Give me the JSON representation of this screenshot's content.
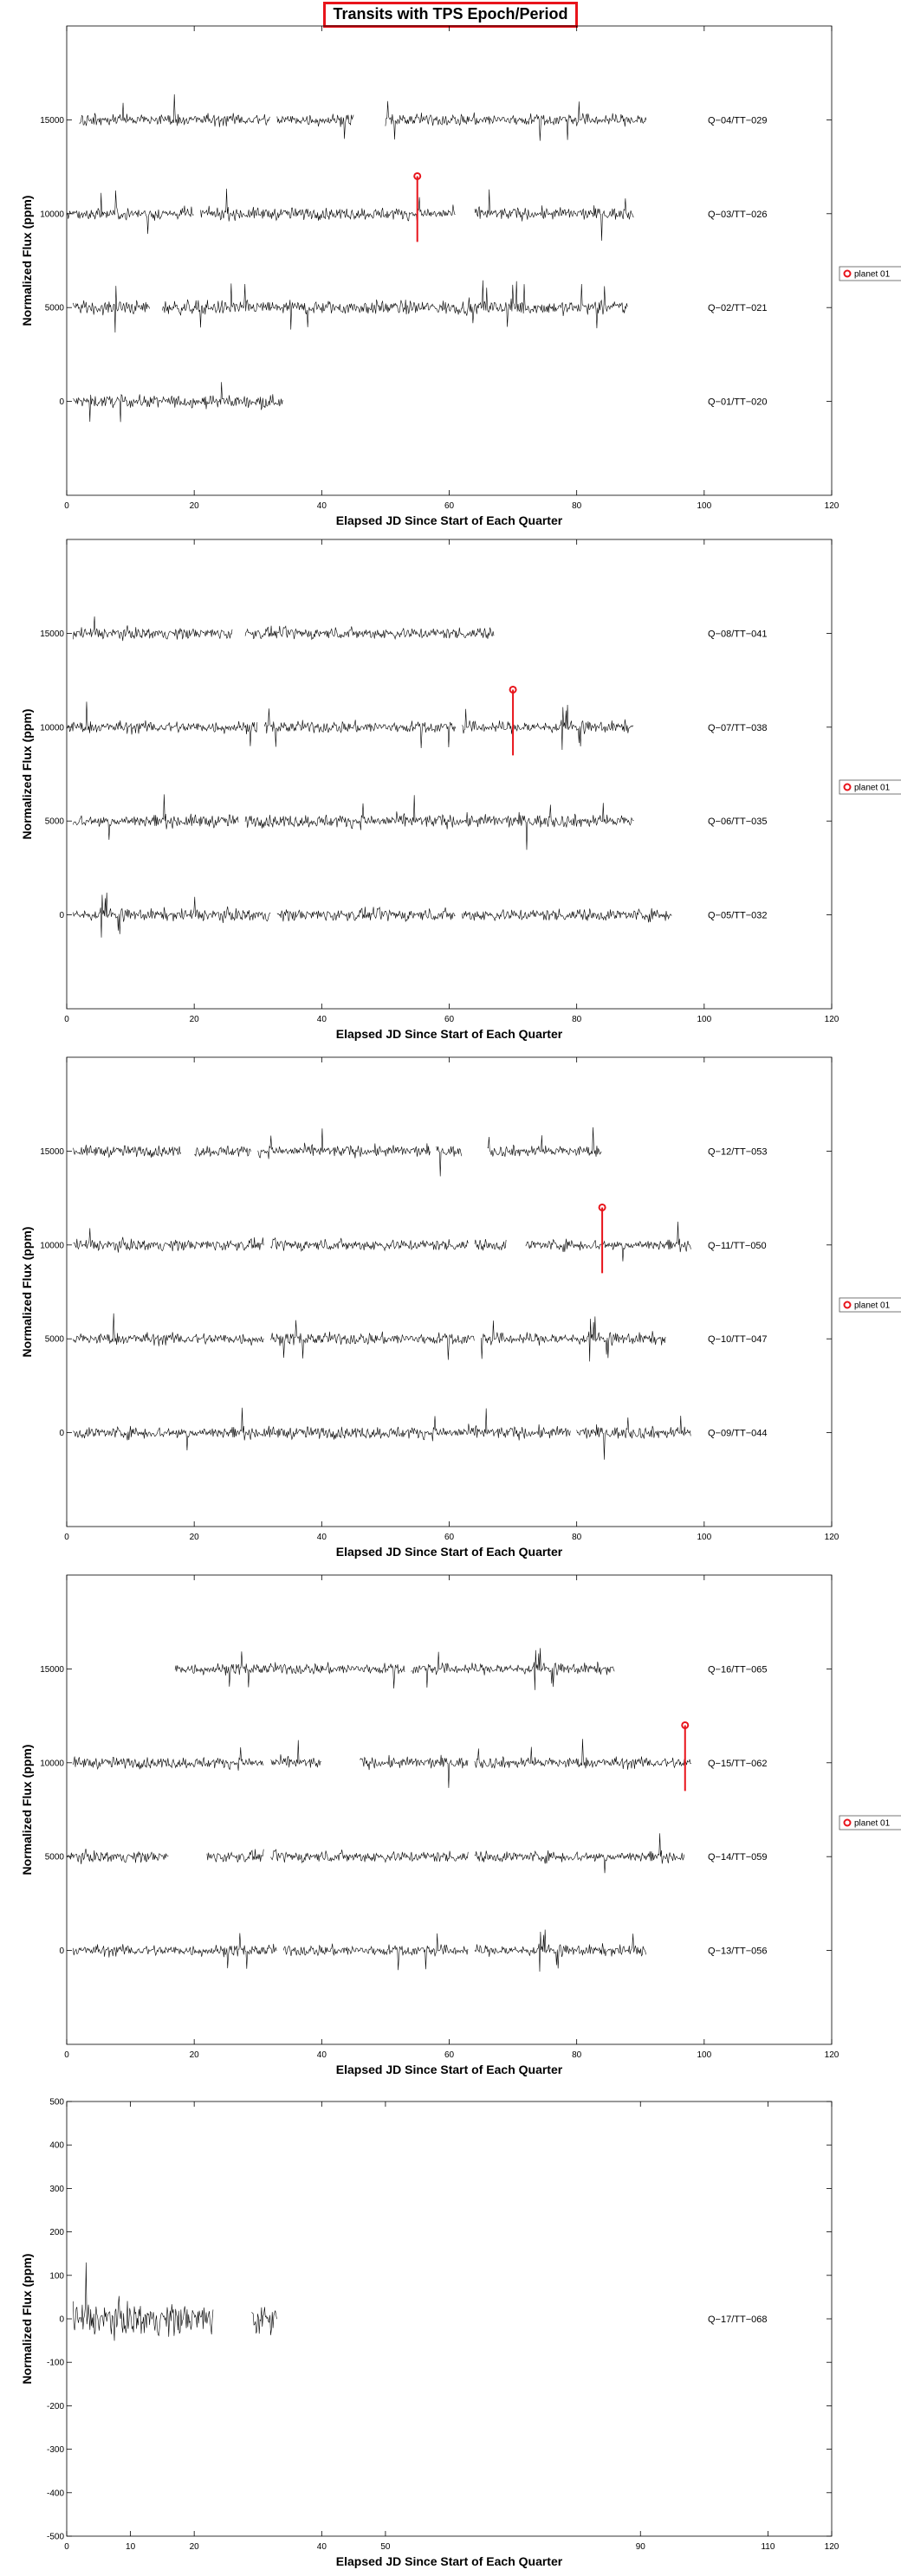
{
  "title": "Transits with TPS Epoch/Period",
  "colors": {
    "transit": "#e8141b",
    "trace": "#000000",
    "frame": "#000000"
  },
  "chart_data": [
    {
      "type": "line",
      "xlabel": "Elapsed JD Since Start of Each Quarter",
      "ylabel": "Normalized Flux (ppm)",
      "xlim": [
        0,
        120
      ],
      "ylim": [
        -5000,
        20000
      ],
      "xticks": [
        0,
        20,
        40,
        60,
        80,
        100,
        120
      ],
      "yticks": [
        0,
        5000,
        10000,
        15000
      ],
      "legend": "planet 01",
      "series": [
        {
          "name": "Q−01/TT−020",
          "offset": 0,
          "segments": [
            [
              1,
              34
            ]
          ],
          "noise": 300
        },
        {
          "name": "Q−02/TT−021",
          "offset": 5000,
          "segments": [
            [
              1,
              13
            ],
            [
              15,
              88
            ]
          ],
          "noise": 350
        },
        {
          "name": "Q−03/TT−026",
          "offset": 10000,
          "segments": [
            [
              0,
              20
            ],
            [
              21,
              61
            ],
            [
              64,
              89
            ]
          ],
          "noise": 300
        },
        {
          "name": "Q−04/TT−029",
          "offset": 15000,
          "segments": [
            [
              2,
              32
            ],
            [
              33,
              45
            ],
            [
              50,
              91
            ]
          ],
          "noise": 300
        }
      ],
      "transits": [
        {
          "quarter": "Q−03/TT−026",
          "x": 55,
          "y_marker": 12000,
          "y_low": 8500
        }
      ]
    },
    {
      "type": "line",
      "xlabel": "Elapsed JD Since Start of Each Quarter",
      "ylabel": "Normalized Flux (ppm)",
      "xlim": [
        0,
        120
      ],
      "ylim": [
        -5000,
        20000
      ],
      "xticks": [
        0,
        20,
        40,
        60,
        80,
        100,
        120
      ],
      "yticks": [
        0,
        5000,
        10000,
        15000
      ],
      "legend": "planet 01",
      "series": [
        {
          "name": "Q−05/TT−032",
          "offset": 0,
          "segments": [
            [
              1,
              32
            ],
            [
              33,
              61
            ],
            [
              62,
              95
            ]
          ],
          "noise": 300
        },
        {
          "name": "Q−06/TT−035",
          "offset": 5000,
          "segments": [
            [
              1,
              27
            ],
            [
              28,
              89
            ]
          ],
          "noise": 320
        },
        {
          "name": "Q−07/TT−038",
          "offset": 10000,
          "segments": [
            [
              0,
              30
            ],
            [
              31,
              61
            ],
            [
              62,
              89
            ]
          ],
          "noise": 300
        },
        {
          "name": "Q−08/TT−041",
          "offset": 15000,
          "segments": [
            [
              1,
              26
            ],
            [
              28,
              67
            ]
          ],
          "noise": 280
        }
      ],
      "transits": [
        {
          "quarter": "Q−07/TT−038",
          "x": 70,
          "y_marker": 12000,
          "y_low": 8500
        }
      ]
    },
    {
      "type": "line",
      "xlabel": "Elapsed JD Since Start of Each Quarter",
      "ylabel": "Normalized Flux (ppm)",
      "xlim": [
        0,
        120
      ],
      "ylim": [
        -5000,
        20000
      ],
      "xticks": [
        0,
        20,
        40,
        60,
        80,
        100,
        120
      ],
      "yticks": [
        0,
        5000,
        10000,
        15000
      ],
      "legend": "planet 01",
      "series": [
        {
          "name": "Q−09/TT−044",
          "offset": 0,
          "segments": [
            [
              1,
              79
            ],
            [
              80,
              98
            ]
          ],
          "noise": 300
        },
        {
          "name": "Q−10/TT−047",
          "offset": 5000,
          "segments": [
            [
              1,
              31
            ],
            [
              32,
              64
            ],
            [
              65,
              94
            ]
          ],
          "noise": 300
        },
        {
          "name": "Q−11/TT−050",
          "offset": 10000,
          "segments": [
            [
              1,
              31
            ],
            [
              32,
              63
            ],
            [
              64,
              69
            ],
            [
              72,
              98
            ]
          ],
          "noise": 280
        },
        {
          "name": "Q−12/TT−053",
          "offset": 15000,
          "segments": [
            [
              1,
              18
            ],
            [
              20,
              29
            ],
            [
              30,
              57
            ],
            [
              58,
              62
            ],
            [
              66,
              84
            ]
          ],
          "noise": 280
        }
      ],
      "transits": [
        {
          "quarter": "Q−11/TT−050",
          "x": 84,
          "y_marker": 12000,
          "y_low": 8500
        }
      ]
    },
    {
      "type": "line",
      "xlabel": "Elapsed JD Since Start of Each Quarter",
      "ylabel": "Normalized Flux (ppm)",
      "xlim": [
        0,
        120
      ],
      "ylim": [
        -5000,
        20000
      ],
      "xticks": [
        0,
        20,
        40,
        60,
        80,
        100,
        120
      ],
      "yticks": [
        0,
        5000,
        10000,
        15000
      ],
      "legend": "planet 01",
      "series": [
        {
          "name": "Q−13/TT−056",
          "offset": 0,
          "segments": [
            [
              1,
              33
            ],
            [
              34,
              63
            ],
            [
              64,
              91
            ]
          ],
          "noise": 280
        },
        {
          "name": "Q−14/TT−059",
          "offset": 5000,
          "segments": [
            [
              0,
              16
            ],
            [
              22,
              31
            ],
            [
              32,
              63
            ],
            [
              64,
              97
            ]
          ],
          "noise": 280
        },
        {
          "name": "Q−15/TT−062",
          "offset": 10000,
          "segments": [
            [
              1,
              31
            ],
            [
              32,
              40
            ],
            [
              46,
              63
            ],
            [
              64,
              98
            ]
          ],
          "noise": 280
        },
        {
          "name": "Q−16/TT−065",
          "offset": 15000,
          "segments": [
            [
              17,
              53
            ],
            [
              54,
              86
            ]
          ],
          "noise": 280
        }
      ],
      "transits": [
        {
          "quarter": "Q−15/TT−062",
          "x": 97,
          "y_marker": 12000,
          "y_low": 8500
        }
      ]
    },
    {
      "type": "line",
      "xlabel": "Elapsed JD Since Start of Each Quarter",
      "ylabel": "Normalized Flux (ppm)",
      "xlim": [
        0,
        120
      ],
      "ylim": [
        -500,
        500
      ],
      "xticks": [
        0,
        10,
        20,
        40,
        50,
        90,
        110,
        120
      ],
      "yticks": [
        -500,
        -400,
        -300,
        -200,
        -100,
        0,
        100,
        200,
        300,
        400,
        500
      ],
      "legend": "",
      "series": [
        {
          "name": "Q−17/TT−068",
          "offset": 0,
          "segments": [
            [
              1,
              23
            ],
            [
              29,
              33
            ]
          ],
          "noise": 35
        }
      ],
      "transits": []
    }
  ]
}
